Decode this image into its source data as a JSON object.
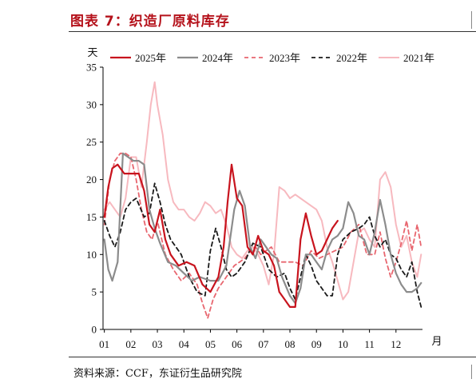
{
  "header": {
    "title": "图表 7：织造厂原料库存"
  },
  "footer": {
    "source": "资料来源：CCF，东证衍生品研究院"
  },
  "chart_data": {
    "type": "line",
    "ylabel": "天",
    "xlabel": "月",
    "ylim": [
      0,
      35
    ],
    "yticks": [
      0,
      5,
      10,
      15,
      20,
      25,
      30,
      35
    ],
    "xlim": [
      0.95,
      13.0
    ],
    "xticks": [
      1,
      2,
      3,
      4,
      5,
      6,
      7,
      8,
      9,
      10,
      11,
      12
    ],
    "xtick_labels": [
      "01",
      "02",
      "03",
      "04",
      "05",
      "06",
      "07",
      "08",
      "09",
      "10",
      "11",
      "12"
    ],
    "grid": false,
    "legend_position": "top",
    "series": [
      {
        "name": "2025年",
        "color": "#c8141e",
        "dash": "solid",
        "width": 2.2,
        "x": [
          1.0,
          1.15,
          1.3,
          1.5,
          1.75,
          2.0,
          2.3,
          2.5,
          2.7,
          2.9,
          3.1,
          3.3,
          3.5,
          3.8,
          4.1,
          4.4,
          4.7,
          5.0,
          5.3,
          5.5,
          5.65,
          5.8,
          6.0,
          6.2,
          6.4,
          6.6,
          6.8,
          7.0,
          7.2,
          7.4,
          7.6,
          7.8,
          8.0,
          8.2,
          8.4,
          8.6,
          8.8,
          9.0,
          9.2,
          9.4,
          9.6,
          9.8
        ],
        "y": [
          15,
          19,
          21.5,
          22,
          20.8,
          20.8,
          20.8,
          18.5,
          14,
          13,
          16,
          12,
          10,
          8.5,
          9,
          8.5,
          6,
          5,
          7,
          11,
          17,
          22,
          17.5,
          16.5,
          11,
          10,
          12.5,
          10.5,
          10,
          8.5,
          5,
          4,
          3,
          3,
          12,
          15.5,
          12.5,
          10,
          10.5,
          12,
          13.5,
          14.5
        ]
      },
      {
        "name": "2024年",
        "color": "#8c8c8c",
        "dash": "solid",
        "width": 2.2,
        "x": [
          1.0,
          1.15,
          1.3,
          1.5,
          1.7,
          1.9,
          2.1,
          2.3,
          2.5,
          2.7,
          2.9,
          3.1,
          3.4,
          3.7,
          4.0,
          4.3,
          4.6,
          5.0,
          5.3,
          5.6,
          5.9,
          6.1,
          6.3,
          6.5,
          6.7,
          6.9,
          7.1,
          7.3,
          7.5,
          7.7,
          8.0,
          8.2,
          8.4,
          8.6,
          8.8,
          9.0,
          9.2,
          9.4,
          9.6,
          9.8,
          10.0,
          10.2,
          10.4,
          10.6,
          10.8,
          11.0,
          11.2,
          11.4,
          11.6,
          11.8,
          12.0,
          12.2,
          12.4,
          12.6,
          12.8,
          12.95
        ],
        "y": [
          12,
          8,
          6.5,
          9,
          23.5,
          23,
          22.5,
          22.5,
          22,
          16,
          13.5,
          11.5,
          9,
          8.5,
          7.5,
          6.5,
          7,
          6.5,
          6.5,
          8.5,
          16,
          18.5,
          16.5,
          11,
          9.5,
          12,
          11,
          10,
          9.5,
          7,
          4.5,
          3.5,
          5.5,
          10,
          10,
          9,
          8,
          10.5,
          12,
          12.5,
          13.5,
          17,
          15.5,
          12.5,
          12,
          10,
          13,
          17.3,
          14,
          10,
          7.5,
          6,
          5,
          5,
          5.5,
          6.2
        ]
      },
      {
        "name": "2023年",
        "color": "#e8666f",
        "dash": "dashed",
        "width": 1.8,
        "x": [
          1.0,
          1.2,
          1.4,
          1.6,
          1.8,
          2.0,
          2.2,
          2.4,
          2.6,
          2.8,
          3.0,
          3.3,
          3.6,
          3.9,
          4.2,
          4.5,
          4.7,
          4.9,
          5.1,
          5.3,
          5.6,
          5.9,
          6.1,
          6.3,
          6.5,
          6.7,
          6.9,
          7.1,
          7.3,
          7.6,
          7.9,
          8.2,
          8.5,
          8.8,
          9.1,
          9.4,
          9.7,
          10.0,
          10.3,
          10.6,
          10.9,
          11.2,
          11.4,
          11.6,
          11.8,
          12.0,
          12.2,
          12.4,
          12.6,
          12.8,
          12.95
        ],
        "y": [
          14,
          20,
          22.5,
          23.5,
          23.5,
          23,
          20,
          16,
          13,
          12,
          14.5,
          10,
          8,
          6.5,
          7.5,
          6,
          3.5,
          1.5,
          4,
          5.5,
          7,
          8.5,
          9,
          9.5,
          10.5,
          11,
          10,
          10.5,
          11,
          9,
          9,
          9,
          8.5,
          10.5,
          9.5,
          10,
          10.5,
          11,
          13,
          14,
          10,
          10,
          13,
          9.5,
          7,
          9,
          11.5,
          14.5,
          10.5,
          14,
          11
        ]
      },
      {
        "name": "2022年",
        "color": "#1a1a1a",
        "dash": "dashed",
        "width": 1.8,
        "x": [
          1.0,
          1.2,
          1.4,
          1.6,
          1.8,
          2.0,
          2.2,
          2.5,
          2.7,
          2.9,
          3.1,
          3.3,
          3.5,
          3.7,
          3.9,
          4.2,
          4.5,
          4.8,
          5.0,
          5.2,
          5.4,
          5.6,
          5.8,
          6.0,
          6.3,
          6.6,
          6.9,
          7.2,
          7.5,
          7.8,
          8.0,
          8.2,
          8.4,
          8.6,
          8.8,
          9.0,
          9.2,
          9.4,
          9.6,
          9.8,
          10.0,
          10.3,
          10.6,
          10.8,
          11.0,
          11.2,
          11.4,
          11.6,
          11.8,
          12.0,
          12.2,
          12.4,
          12.6,
          12.8,
          12.95
        ],
        "y": [
          14.5,
          12.5,
          11,
          13,
          16,
          17,
          17.5,
          15,
          15.5,
          19.5,
          17,
          14,
          12,
          11,
          10,
          7,
          5,
          4.5,
          10.5,
          13.5,
          11,
          8,
          7,
          7.5,
          9,
          11.5,
          11,
          8,
          7,
          7.5,
          5.5,
          4,
          7,
          10,
          8.5,
          6.5,
          5.5,
          4.5,
          4.5,
          10,
          12,
          13,
          13.5,
          14,
          15,
          12.5,
          11,
          12,
          10,
          9.5,
          8,
          7,
          9,
          5,
          3
        ]
      },
      {
        "name": "2021年",
        "color": "#f7b9bf",
        "dash": "solid",
        "width": 2.0,
        "x": [
          1.0,
          1.2,
          1.4,
          1.6,
          1.8,
          2.0,
          2.2,
          2.4,
          2.6,
          2.75,
          2.9,
          3.0,
          3.2,
          3.4,
          3.6,
          3.8,
          4.0,
          4.2,
          4.4,
          4.6,
          4.8,
          5.0,
          5.2,
          5.4,
          5.6,
          5.8,
          6.0,
          6.2,
          6.4,
          6.6,
          6.8,
          7.0,
          7.2,
          7.4,
          7.6,
          7.8,
          8.0,
          8.2,
          8.4,
          8.6,
          8.8,
          9.0,
          9.2,
          9.4,
          9.6,
          9.8,
          10.0,
          10.2,
          10.4,
          10.6,
          10.8,
          11.0,
          11.2,
          11.4,
          11.6,
          11.8,
          12.0,
          12.2,
          12.4,
          12.6,
          12.8,
          12.95
        ],
        "y": [
          16,
          17,
          16,
          15,
          17.5,
          23,
          23,
          19,
          25,
          30,
          33,
          30,
          26,
          20,
          17,
          16,
          16,
          15,
          14.5,
          15.5,
          17,
          16.5,
          15.5,
          16,
          14,
          11,
          10,
          9.5,
          10.5,
          11,
          10,
          8.5,
          6,
          10,
          19,
          18.5,
          17.5,
          18,
          17.5,
          17,
          16.5,
          16,
          14.5,
          11,
          9,
          6.5,
          4,
          5,
          9,
          13,
          13.5,
          12,
          11,
          20,
          21,
          19,
          14,
          11,
          12.5,
          9,
          7,
          10
        ]
      }
    ]
  }
}
